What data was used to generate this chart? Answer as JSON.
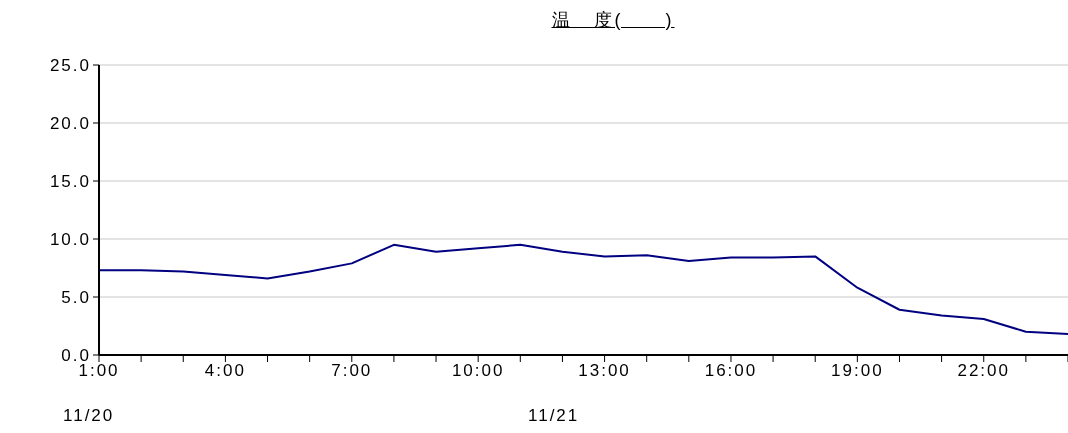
{
  "chart_data": {
    "type": "line",
    "title": "温　度(　　)",
    "categories": [
      "1:00",
      null,
      null,
      "4:00",
      null,
      null,
      "7:00",
      null,
      null,
      "10:00",
      null,
      null,
      "13:00",
      null,
      null,
      "16:00",
      null,
      null,
      "19:00",
      null,
      null,
      "22:00",
      null,
      null
    ],
    "series": [
      {
        "color": "#000080",
        "values": [
          7.3,
          7.3,
          7.2,
          6.9,
          6.6,
          7.2,
          7.9,
          9.5,
          8.9,
          9.2,
          9.5,
          8.9,
          8.5,
          8.6,
          8.1,
          8.4,
          8.4,
          8.5,
          5.8,
          3.9,
          3.4,
          3.1,
          2.0,
          1.8
        ]
      }
    ],
    "ylim": [
      0,
      25
    ],
    "yticks": [
      {
        "value": 0,
        "label": "0.0"
      },
      {
        "value": 5,
        "label": "5.0"
      },
      {
        "value": 10,
        "label": "10.0"
      },
      {
        "value": 15,
        "label": "15.0"
      },
      {
        "value": 20,
        "label": "20.0"
      },
      {
        "value": 25,
        "label": "25.0"
      }
    ],
    "grid": "y",
    "marker": "none",
    "line_style": "solid",
    "legend": false,
    "annotations": [
      "11/20",
      "11/21"
    ]
  }
}
